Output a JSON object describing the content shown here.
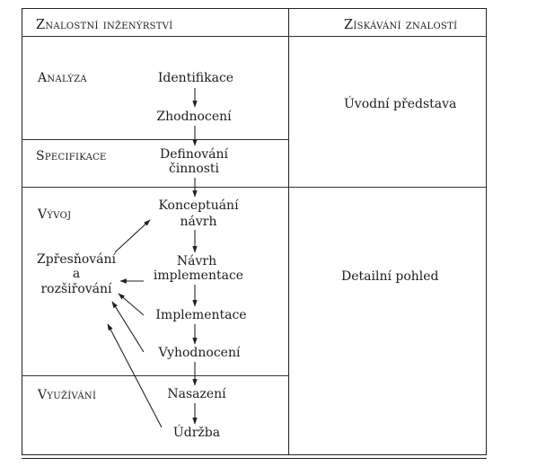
{
  "headers": {
    "left": "Znalostní inženýrství",
    "right": "Získávání znalostí"
  },
  "phases": {
    "analysis": "Analýza",
    "specification": "Specifikace",
    "development": "Vývoj",
    "usage": "Využívání"
  },
  "steps": {
    "identification": "Identifikace",
    "evaluation": "Zhodnocení",
    "definition_1": "Definování",
    "definition_2": "činnosti",
    "conceptual_1": "Konceptuání",
    "conceptual_2": "návrh",
    "impl_design_1": "Návrh",
    "impl_design_2": "implementace",
    "implementation": "Implementace",
    "assessment": "Vyhodnocení",
    "deployment": "Nasazení",
    "maintenance": "Údržba"
  },
  "refinement": {
    "line1": "Zpřesňování",
    "line2": "a",
    "line3": "rozšiřování"
  },
  "knowledge": {
    "initial": "Úvodní představa",
    "detailed": "Detailní pohled"
  }
}
